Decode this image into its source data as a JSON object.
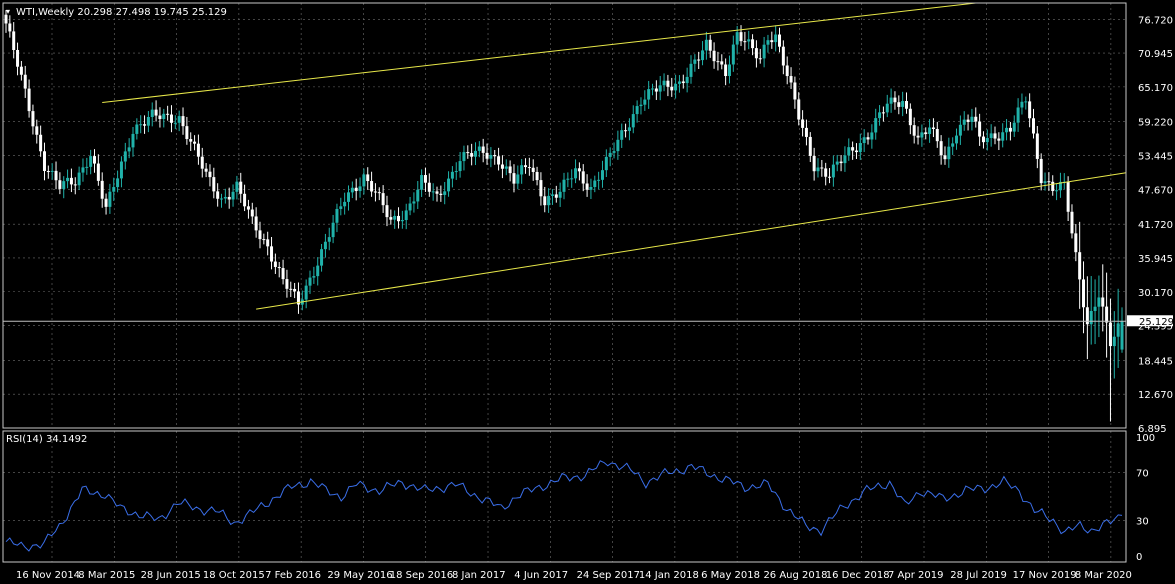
{
  "colors": {
    "background": "#000000",
    "grid": "#6e6e6e",
    "frame": "#c8c8c8",
    "bull": "#20b2aa",
    "bear": "#ffffff",
    "channel": "#e8e84a",
    "rsi_line": "#3a6ee8",
    "price_line": "#c0c0c0"
  },
  "header": {
    "symbol_line": "WTI,Weekly  20.298 27.498 19.745 25.129"
  },
  "current_price_label": "25.129",
  "rsi_header": "RSI(14) 34.1492",
  "chart_data": [
    {
      "type": "candlestick",
      "title": "WTI,Weekly",
      "yticks": [
        "76.720",
        "70.945",
        "65.170",
        "59.220",
        "53.445",
        "47.670",
        "41.720",
        "35.945",
        "30.170",
        "24.395",
        "18.445",
        "12.670",
        "6.895"
      ],
      "ylim": [
        6.895,
        79.5
      ],
      "last_price": 25.129,
      "xticks": [
        "16 Nov 2014",
        "8 Mar 2015",
        "28 Jun 2015",
        "18 Oct 2015",
        "7 Feb 2016",
        "29 May 2016",
        "18 Sep 2016",
        "8 Jan 2017",
        "4 Jun 2017",
        "24 Sep 2017",
        "14 Jan 2018",
        "6 May 2018",
        "26 Aug 2018",
        "16 Dec 2018",
        "7 Apr 2019",
        "28 Jul 2019",
        "17 Nov 2019",
        "8 Mar 2020"
      ],
      "anchors": [
        [
          0,
          76
        ],
        [
          5,
          64
        ],
        [
          10,
          52
        ],
        [
          14,
          48
        ],
        [
          18,
          49
        ],
        [
          22,
          54
        ],
        [
          26,
          44
        ],
        [
          30,
          52
        ],
        [
          33,
          58
        ],
        [
          38,
          60
        ],
        [
          45,
          60
        ],
        [
          52,
          50
        ],
        [
          56,
          46
        ],
        [
          60,
          48
        ],
        [
          64,
          42
        ],
        [
          68,
          38
        ],
        [
          72,
          32
        ],
        [
          76,
          28
        ],
        [
          80,
          34
        ],
        [
          84,
          40
        ],
        [
          88,
          46
        ],
        [
          93,
          50
        ],
        [
          96,
          47
        ],
        [
          100,
          42
        ],
        [
          104,
          44
        ],
        [
          108,
          49
        ],
        [
          112,
          46
        ],
        [
          118,
          53
        ],
        [
          124,
          54
        ],
        [
          128,
          53
        ],
        [
          132,
          49
        ],
        [
          136,
          52
        ],
        [
          140,
          46
        ],
        [
          144,
          47
        ],
        [
          148,
          51
        ],
        [
          152,
          48
        ],
        [
          156,
          52
        ],
        [
          160,
          57
        ],
        [
          165,
          63
        ],
        [
          170,
          65
        ],
        [
          175,
          66
        ],
        [
          180,
          70
        ],
        [
          182,
          72
        ],
        [
          187,
          68
        ],
        [
          190,
          74
        ],
        [
          196,
          70
        ],
        [
          198,
          74
        ],
        [
          200,
          74
        ],
        [
          206,
          60
        ],
        [
          210,
          52
        ],
        [
          214,
          50
        ],
        [
          219,
          54
        ],
        [
          224,
          57
        ],
        [
          229,
          62
        ],
        [
          233,
          63
        ],
        [
          237,
          56
        ],
        [
          240,
          58
        ],
        [
          244,
          53
        ],
        [
          247,
          58
        ],
        [
          251,
          60
        ],
        [
          253,
          56
        ],
        [
          257,
          57
        ],
        [
          261,
          58
        ],
        [
          265,
          63
        ],
        [
          269,
          50
        ],
        [
          272,
          48
        ],
        [
          275,
          48
        ],
        [
          278,
          36
        ],
        [
          281,
          25
        ],
        [
          284,
          30
        ],
        [
          287,
          21
        ],
        [
          290,
          25
        ]
      ],
      "last_candle": {
        "open": 20.298,
        "high": 27.498,
        "low": 19.745,
        "close": 25.129
      },
      "channel": [
        {
          "x0": 25,
          "y0": 62.5,
          "x1": 252,
          "y1": 79.5
        },
        {
          "x0": 65,
          "y0": 27.2,
          "x1": 300,
          "y1": 50.5
        }
      ]
    },
    {
      "type": "line",
      "title": "RSI(14)",
      "current_value": 34.1492,
      "yticks": [
        "100",
        "70",
        "30",
        "0"
      ],
      "ylim": [
        0,
        100
      ],
      "series": [
        {
          "values_anchors": [
            [
              0,
              12
            ],
            [
              4,
              8
            ],
            [
              10,
              10
            ],
            [
              14,
              25
            ],
            [
              20,
              55
            ],
            [
              26,
              52
            ],
            [
              30,
              40
            ],
            [
              35,
              35
            ],
            [
              40,
              30
            ],
            [
              45,
              45
            ],
            [
              50,
              40
            ],
            [
              55,
              38
            ],
            [
              60,
              28
            ],
            [
              64,
              35
            ],
            [
              70,
              48
            ],
            [
              75,
              58
            ],
            [
              80,
              63
            ],
            [
              84,
              55
            ],
            [
              88,
              50
            ],
            [
              92,
              60
            ],
            [
              98,
              55
            ],
            [
              104,
              62
            ],
            [
              110,
              55
            ],
            [
              118,
              60
            ],
            [
              124,
              50
            ],
            [
              130,
              40
            ],
            [
              134,
              50
            ],
            [
              140,
              58
            ],
            [
              146,
              65
            ],
            [
              152,
              68
            ],
            [
              158,
              80
            ],
            [
              164,
              72
            ],
            [
              168,
              62
            ],
            [
              174,
              70
            ],
            [
              180,
              75
            ],
            [
              188,
              65
            ],
            [
              194,
              58
            ],
            [
              200,
              60
            ],
            [
              205,
              40
            ],
            [
              210,
              25
            ],
            [
              214,
              22
            ],
            [
              220,
              42
            ],
            [
              226,
              55
            ],
            [
              232,
              62
            ],
            [
              236,
              42
            ],
            [
              240,
              55
            ],
            [
              246,
              48
            ],
            [
              252,
              55
            ],
            [
              258,
              58
            ],
            [
              262,
              62
            ],
            [
              266,
              55
            ],
            [
              270,
              38
            ],
            [
              275,
              30
            ],
            [
              278,
              20
            ],
            [
              282,
              25
            ],
            [
              285,
              22
            ],
            [
              290,
              28
            ],
            [
              293,
              34.1492
            ]
          ]
        }
      ]
    }
  ]
}
